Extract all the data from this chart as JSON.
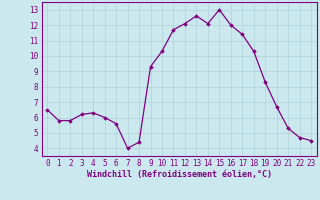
{
  "x": [
    0,
    1,
    2,
    3,
    4,
    5,
    6,
    7,
    8,
    9,
    10,
    11,
    12,
    13,
    14,
    15,
    16,
    17,
    18,
    19,
    20,
    21,
    22,
    23
  ],
  "y": [
    6.5,
    5.8,
    5.8,
    6.2,
    6.3,
    6.0,
    5.6,
    4.0,
    4.4,
    9.3,
    10.3,
    11.7,
    12.1,
    12.6,
    12.1,
    13.0,
    12.0,
    11.4,
    10.3,
    8.3,
    6.7,
    5.3,
    4.7,
    4.5
  ],
  "xlabel": "Windchill (Refroidissement éolien,°C)",
  "xlim": [
    -0.5,
    23.5
  ],
  "ylim": [
    3.5,
    13.5
  ],
  "yticks": [
    4,
    5,
    6,
    7,
    8,
    9,
    10,
    11,
    12,
    13
  ],
  "xticks": [
    0,
    1,
    2,
    3,
    4,
    5,
    6,
    7,
    8,
    9,
    10,
    11,
    12,
    13,
    14,
    15,
    16,
    17,
    18,
    19,
    20,
    21,
    22,
    23
  ],
  "line_color": "#800080",
  "marker": "D",
  "marker_size": 1.8,
  "bg_color": "#cce8ef",
  "grid_color": "#b0d0d8",
  "axis_label_color": "#800080",
  "tick_label_color": "#800080",
  "spine_color": "#800080",
  "tick_fontsize": 5.5,
  "xlabel_fontsize": 6.0
}
